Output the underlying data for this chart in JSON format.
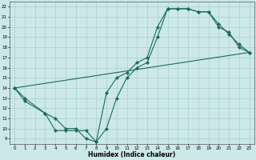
{
  "xlabel": "Humidex (Indice chaleur)",
  "background_color": "#cce8e8",
  "grid_color": "#aacfcf",
  "line_color": "#1a6b5a",
  "xlim": [
    -0.5,
    23.5
  ],
  "ylim": [
    8.5,
    22.5
  ],
  "xticks": [
    0,
    1,
    2,
    3,
    4,
    5,
    6,
    7,
    8,
    9,
    10,
    11,
    12,
    13,
    14,
    15,
    16,
    17,
    18,
    19,
    20,
    21,
    22,
    23
  ],
  "yticks": [
    9,
    10,
    11,
    12,
    13,
    14,
    15,
    16,
    17,
    18,
    19,
    20,
    21,
    22
  ],
  "line1_x": [
    0,
    1,
    3,
    4,
    5,
    6,
    7,
    8,
    9,
    10,
    11,
    12,
    13,
    14,
    15,
    16,
    17,
    18,
    19,
    20,
    21,
    22,
    23
  ],
  "line1_y": [
    14,
    13,
    11.5,
    11,
    10,
    10,
    9,
    8.7,
    13.5,
    15,
    15.5,
    16.5,
    17,
    20,
    21.8,
    21.8,
    21.8,
    21.5,
    21.5,
    20,
    19.5,
    18,
    17.5
  ],
  "line2_x": [
    0,
    1,
    3,
    4,
    5,
    6,
    7,
    8,
    9,
    10,
    11,
    12,
    13,
    14,
    15,
    16,
    17,
    18,
    19,
    20,
    21,
    22,
    23
  ],
  "line2_y": [
    14,
    12.7,
    11.5,
    9.8,
    9.8,
    9.8,
    9.8,
    8.7,
    10,
    13,
    15,
    16,
    16.5,
    19,
    21.8,
    21.8,
    21.8,
    21.5,
    21.5,
    20.3,
    19.3,
    18.3,
    17.5
  ],
  "line3_x": [
    0,
    23
  ],
  "line3_y": [
    14,
    17.5
  ]
}
